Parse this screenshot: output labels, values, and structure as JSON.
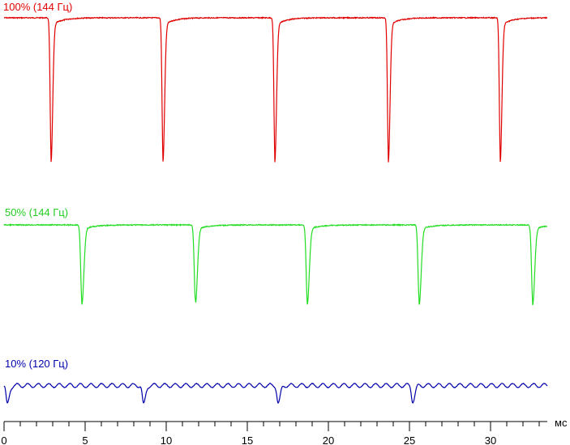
{
  "chart_data": {
    "type": "line",
    "title": "",
    "xlabel": "мс",
    "ylabel": "",
    "xlim": [
      0,
      33.5
    ],
    "x_ticks": [
      0,
      5,
      10,
      15,
      20,
      25,
      30
    ],
    "x_tick_labels": [
      "0",
      "5",
      "10",
      "15",
      "20",
      "25",
      "30"
    ],
    "grid": false,
    "series": [
      {
        "name": "100% (144 Гц)",
        "color": "#e00000",
        "pulse_period_ms": 6.94,
        "dip_times_ms": [
          2.9,
          9.8,
          16.7,
          23.7,
          30.6
        ],
        "baseline_level": 1.0,
        "dip_level": 0.0
      },
      {
        "name": "50% (144 Гц)",
        "color": "#22dd22",
        "pulse_period_ms": 6.94,
        "dip_times_ms": [
          4.8,
          11.8,
          18.7,
          25.6,
          32.6
        ],
        "baseline_level": 1.0,
        "dip_level": 0.0
      },
      {
        "name": "10% (120 Гц)",
        "color": "#0000aa",
        "pulse_period_ms": 8.33,
        "dip_times_ms": [
          0.2,
          8.6,
          16.9,
          25.2
        ],
        "ripple_period_ms": 0.65,
        "baseline_level": 1.0,
        "dip_level": 0.0
      }
    ]
  }
}
